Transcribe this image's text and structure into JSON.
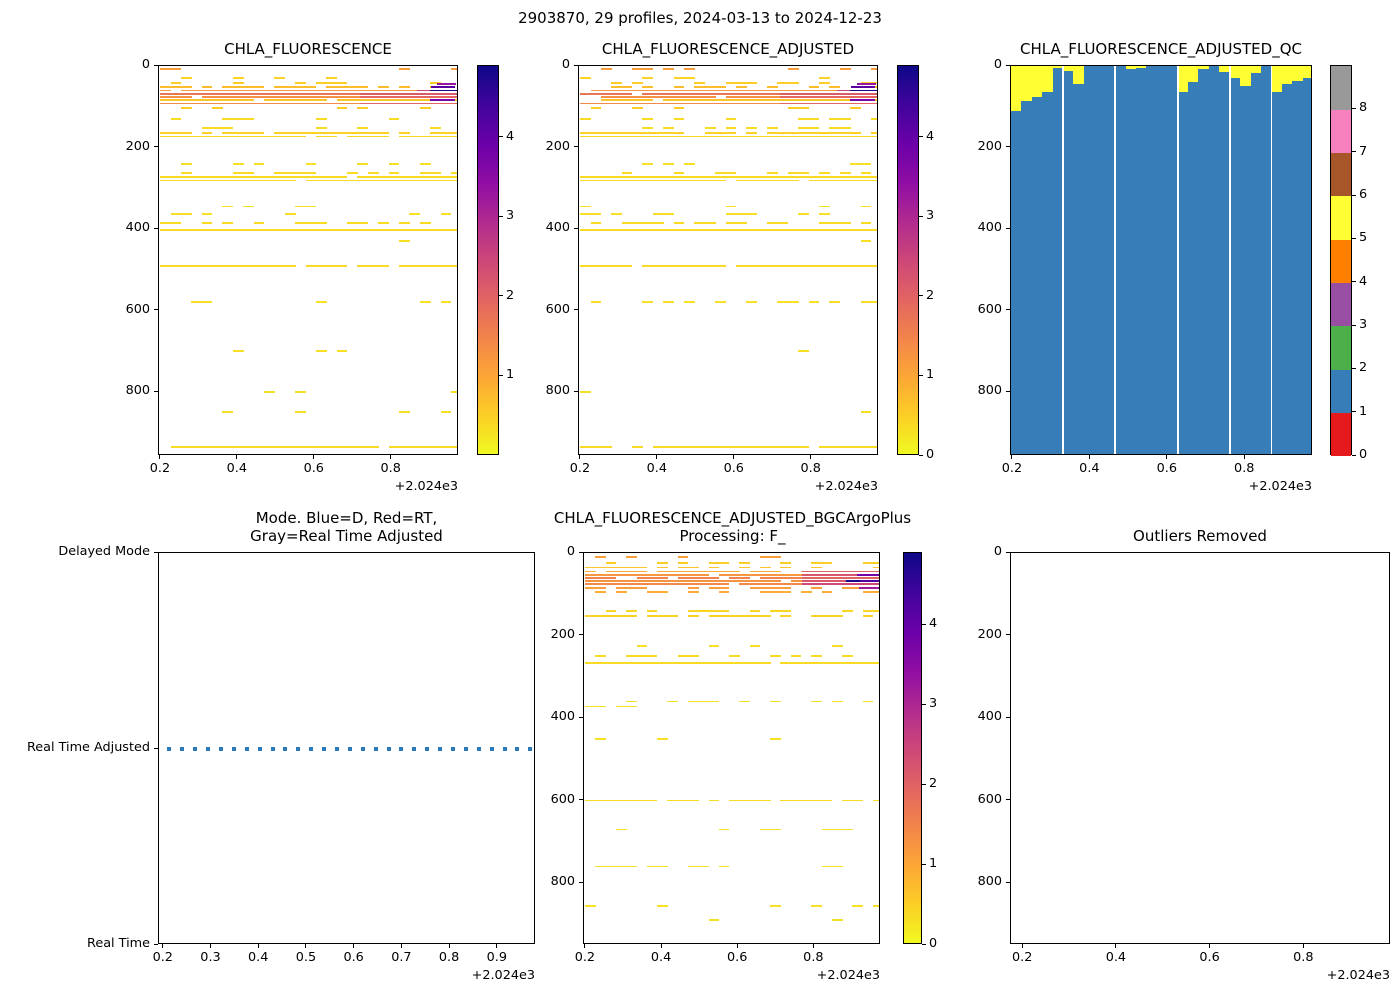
{
  "figure": {
    "title": "2903870, 29 profiles, 2024-03-13 to 2024-12-23",
    "offset_label": "+2.024e3",
    "n_profiles": 29,
    "date_start": "2024-03-13",
    "date_end": "2024-12-23",
    "platform_id": "2903870"
  },
  "panels": {
    "chla": {
      "title": "CHLA_FLUORESCENCE",
      "yticks": [
        0,
        200,
        400,
        600,
        800
      ],
      "xticks": [
        0.2,
        0.4,
        0.6,
        0.8
      ],
      "colorbar_ticks": [
        4,
        3,
        2,
        1
      ]
    },
    "chla_adj": {
      "title": "CHLA_FLUORESCENCE_ADJUSTED",
      "yticks": [
        0,
        200,
        400,
        600,
        800
      ],
      "xticks": [
        0.2,
        0.4,
        0.6,
        0.8
      ],
      "colorbar_ticks": [
        4,
        3,
        2,
        1,
        0
      ]
    },
    "qc": {
      "title": "CHLA_FLUORESCENCE_ADJUSTED_QC",
      "yticks": [
        0,
        200,
        400,
        600,
        800
      ],
      "xticks": [
        0.2,
        0.4,
        0.6,
        0.8
      ],
      "colorbar_ticks": [
        8,
        7,
        6,
        5,
        4,
        3,
        2,
        1,
        0
      ]
    },
    "mode": {
      "title_line1": "Mode. Blue=D, Red=RT,",
      "title_line2": "Gray=Real Time Adjusted",
      "ytick_labels": [
        "Delayed Mode",
        "Real Time Adjusted",
        "Real Time"
      ],
      "xticks": [
        0.2,
        0.3,
        0.4,
        0.5,
        0.6,
        0.7,
        0.8,
        0.9
      ]
    },
    "bgc": {
      "title_line1": "CHLA_FLUORESCENCE_ADJUSTED_BGCArgoPlus",
      "title_line2": "Processing: F_",
      "yticks": [
        0,
        200,
        400,
        600,
        800
      ],
      "xticks": [
        0.2,
        0.4,
        0.6,
        0.8
      ],
      "colorbar_ticks": [
        4,
        3,
        2,
        1,
        0
      ]
    },
    "outliers": {
      "title": "Outliers Removed",
      "yticks": [
        0,
        200,
        400,
        600,
        800
      ],
      "xticks": [
        0.2,
        0.4,
        0.6,
        0.8
      ]
    }
  },
  "colors": {
    "plasma_r_stops": [
      "#f0f921",
      "#fcce25",
      "#fca636",
      "#f2844b",
      "#e16462",
      "#cc4778",
      "#b12a90",
      "#8f0da4",
      "#6a00a8",
      "#41049d",
      "#0d0887"
    ],
    "set1_flag_colors": [
      "#e41a1c",
      "#377eb8",
      "#4daf4a",
      "#984ea3",
      "#ff7f00",
      "#ffff33",
      "#a65628",
      "#f781bf",
      "#999999"
    ],
    "qc_blue": "#377eb8",
    "qc_yellow": "#ffff33",
    "mode_dot": "#2a79b9",
    "spine": "#000000"
  },
  "chart_data": [
    {
      "type": "scatter",
      "panel": "chla",
      "title": "CHLA_FLUORESCENCE",
      "x_range": [
        2024.195,
        2024.975
      ],
      "depth_range": [
        0,
        957
      ],
      "value_range": [
        0,
        4.9
      ],
      "n_profiles": 29,
      "profile_t_start": 2024.212,
      "profile_t_end": 2024.968,
      "rows_format": [
        "depth_m",
        "value",
        "coverage_fraction"
      ],
      "rows": [
        [
          8,
          1.1,
          0.15
        ],
        [
          30,
          0.45,
          0.2
        ],
        [
          42,
          0.5,
          0.35
        ],
        [
          52,
          0.7,
          0.6
        ],
        [
          60,
          1.2,
          0.93
        ],
        [
          68,
          1.7,
          0.96
        ],
        [
          76,
          1.3,
          0.93
        ],
        [
          84,
          0.6,
          0.88
        ],
        [
          92,
          1.35,
          0.96
        ],
        [
          103,
          0.5,
          0.3
        ],
        [
          130,
          0.35,
          0.25
        ],
        [
          152,
          0.35,
          0.2
        ],
        [
          165,
          0.45,
          0.6
        ],
        [
          173,
          0.4,
          0.97
        ],
        [
          240,
          0.3,
          0.18
        ],
        [
          262,
          0.35,
          0.45
        ],
        [
          273,
          0.35,
          0.97
        ],
        [
          281,
          0.35,
          0.92
        ],
        [
          345,
          0.3,
          0.2
        ],
        [
          363,
          0.3,
          0.25
        ],
        [
          385,
          0.35,
          0.5
        ],
        [
          402,
          0.35,
          0.97
        ],
        [
          430,
          0.3,
          0.05
        ],
        [
          490,
          0.35,
          0.95
        ],
        [
          580,
          0.3,
          0.3
        ],
        [
          700,
          0.3,
          0.15
        ],
        [
          800,
          0.3,
          0.08
        ],
        [
          850,
          0.3,
          0.05
        ],
        [
          935,
          0.35,
          0.9
        ]
      ],
      "highlights_format": [
        "depth_m",
        "x_start",
        "x_end",
        "value"
      ],
      "highlights": [
        [
          45,
          2024.93,
          2024.955,
          3.3
        ],
        [
          52,
          2024.916,
          2024.952,
          4.1
        ],
        [
          60,
          2024.88,
          2024.908,
          2.5
        ],
        [
          60,
          2024.912,
          2024.956,
          4.8
        ],
        [
          68,
          2024.73,
          2024.958,
          2.1
        ],
        [
          76,
          2024.73,
          2024.958,
          1.9
        ],
        [
          84,
          2024.912,
          2024.952,
          3.7
        ],
        [
          92,
          2024.73,
          2024.958,
          1.9
        ]
      ]
    },
    {
      "type": "scatter",
      "panel": "chla_adj",
      "title": "CHLA_FLUORESCENCE_ADJUSTED",
      "x_range": [
        2024.195,
        2024.975
      ],
      "depth_range": [
        0,
        957
      ],
      "value_range": [
        0,
        4.9
      ],
      "n_profiles": 29,
      "profile_t_start": 2024.212,
      "profile_t_end": 2024.968,
      "rows_format": [
        "depth_m",
        "value",
        "coverage_fraction"
      ],
      "rows": [
        [
          8,
          1.1,
          0.15
        ],
        [
          30,
          0.45,
          0.2
        ],
        [
          42,
          0.5,
          0.35
        ],
        [
          52,
          0.7,
          0.6
        ],
        [
          60,
          1.2,
          0.93
        ],
        [
          68,
          1.7,
          0.96
        ],
        [
          76,
          1.3,
          0.93
        ],
        [
          84,
          0.6,
          0.88
        ],
        [
          92,
          1.35,
          0.96
        ],
        [
          103,
          0.5,
          0.3
        ],
        [
          130,
          0.35,
          0.25
        ],
        [
          152,
          0.35,
          0.2
        ],
        [
          165,
          0.45,
          0.6
        ],
        [
          173,
          0.4,
          0.97
        ],
        [
          240,
          0.3,
          0.18
        ],
        [
          262,
          0.35,
          0.45
        ],
        [
          273,
          0.35,
          0.97
        ],
        [
          281,
          0.35,
          0.92
        ],
        [
          345,
          0.3,
          0.2
        ],
        [
          363,
          0.3,
          0.25
        ],
        [
          385,
          0.35,
          0.5
        ],
        [
          402,
          0.35,
          0.97
        ],
        [
          430,
          0.3,
          0.05
        ],
        [
          490,
          0.35,
          0.95
        ],
        [
          580,
          0.3,
          0.3
        ],
        [
          700,
          0.3,
          0.15
        ],
        [
          800,
          0.3,
          0.08
        ],
        [
          850,
          0.3,
          0.05
        ],
        [
          935,
          0.35,
          0.9
        ]
      ],
      "highlights_format": [
        "depth_m",
        "x_start",
        "x_end",
        "value"
      ],
      "highlights": [
        [
          45,
          2024.93,
          2024.955,
          3.3
        ],
        [
          52,
          2024.916,
          2024.952,
          4.1
        ],
        [
          60,
          2024.88,
          2024.908,
          2.5
        ],
        [
          60,
          2024.912,
          2024.956,
          4.8
        ],
        [
          68,
          2024.73,
          2024.958,
          2.1
        ],
        [
          76,
          2024.73,
          2024.958,
          1.9
        ],
        [
          84,
          2024.912,
          2024.952,
          3.7
        ],
        [
          92,
          2024.73,
          2024.958,
          1.9
        ]
      ]
    },
    {
      "type": "qc_columns",
      "panel": "qc",
      "title": "CHLA_FLUORESCENCE_ADJUSTED_QC",
      "x_range": [
        2024.195,
        2024.975
      ],
      "depth_range": [
        0,
        957
      ],
      "flag_scale_max": 8,
      "dominant_flag": 1,
      "surface_flag": 5,
      "columns_yellow_to_depth_m": [
        110,
        85,
        75,
        65,
        5,
        12,
        45,
        0,
        0,
        0,
        0,
        8,
        5,
        0,
        0,
        0,
        65,
        40,
        8,
        0,
        15,
        30,
        50,
        18,
        0,
        65,
        45,
        38,
        30
      ],
      "column_bottom_depth_m": 957,
      "gap_after_columns": [
        5,
        10,
        16,
        21,
        25
      ]
    },
    {
      "type": "mode_dots",
      "panel": "mode",
      "level": "Real Time Adjusted",
      "n": 29,
      "t_start": 2024.212,
      "t_end": 2024.968,
      "x_range": [
        2024.19,
        2024.98
      ]
    },
    {
      "type": "scatter",
      "panel": "bgc",
      "title": "CHLA_FLUORESCENCE_ADJUSTED_BGCArgoPlus Processing: F_",
      "x_range": [
        2024.195,
        2024.975
      ],
      "depth_range": [
        0,
        950
      ],
      "value_range": [
        0,
        4.9
      ],
      "n_profiles": 29,
      "profile_t_start": 2024.212,
      "profile_t_end": 2024.968,
      "rows_format": [
        "depth_m",
        "value",
        "coverage_fraction"
      ],
      "rows": [
        [
          10,
          1.1,
          0.12
        ],
        [
          25,
          0.5,
          0.3
        ],
        [
          35,
          0.6,
          0.5
        ],
        [
          45,
          0.9,
          0.88
        ],
        [
          53,
          1.2,
          0.95
        ],
        [
          60,
          1.5,
          0.9
        ],
        [
          68,
          1.25,
          0.85
        ],
        [
          76,
          1.4,
          0.92
        ],
        [
          85,
          1.1,
          0.55
        ],
        [
          95,
          0.9,
          0.35
        ],
        [
          140,
          0.4,
          0.25
        ],
        [
          153,
          0.45,
          0.6
        ],
        [
          225,
          0.3,
          0.12
        ],
        [
          250,
          0.35,
          0.45
        ],
        [
          267,
          0.35,
          0.95
        ],
        [
          360,
          0.3,
          0.3
        ],
        [
          372,
          0.3,
          0.2
        ],
        [
          450,
          0.3,
          0.08
        ],
        [
          600,
          0.35,
          0.85
        ],
        [
          670,
          0.3,
          0.3
        ],
        [
          760,
          0.3,
          0.4
        ],
        [
          856,
          0.3,
          0.15
        ],
        [
          890,
          0.3,
          0.12
        ]
      ],
      "highlights_format": [
        "depth_m",
        "x_start",
        "x_end",
        "value"
      ],
      "highlights": [
        [
          45,
          2024.78,
          2024.965,
          2.0
        ],
        [
          53,
          2024.78,
          2024.92,
          2.2
        ],
        [
          53,
          2024.925,
          2024.962,
          3.8
        ],
        [
          60,
          2024.78,
          2024.965,
          2.0
        ],
        [
          68,
          2024.78,
          2024.89,
          2.2
        ],
        [
          68,
          2024.895,
          2024.928,
          4.8
        ],
        [
          68,
          2024.932,
          2024.962,
          4.2
        ],
        [
          76,
          2024.78,
          2024.965,
          2.4
        ],
        [
          85,
          2024.93,
          2024.965,
          3.2
        ]
      ]
    },
    {
      "type": "empty",
      "panel": "outliers",
      "title": "Outliers Removed",
      "x_range": [
        2024.174,
        2024.985
      ],
      "depth_range": [
        0,
        950
      ],
      "points": []
    }
  ]
}
